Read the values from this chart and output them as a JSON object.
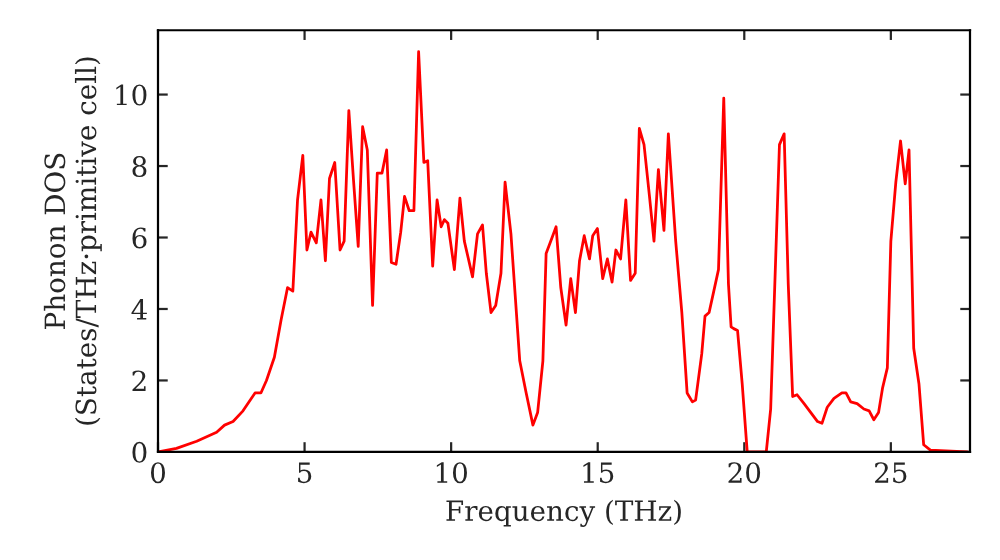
{
  "chart_data": {
    "type": "line",
    "xlabel": "Frequency (THz)",
    "ylabel": "Phonon DOS\n(States/THz·primitive cell)",
    "xlim": [
      0,
      27.7
    ],
    "ylim": [
      0,
      11.8
    ],
    "xticks": [
      0,
      5,
      10,
      15,
      20,
      25
    ],
    "yticks": [
      0,
      2,
      4,
      6,
      8,
      10
    ],
    "grid": false,
    "legend": false,
    "series": [
      {
        "color": "#ff0000",
        "x": [
          0,
          0.63,
          1.32,
          2.0,
          2.27,
          2.56,
          2.9,
          3.31,
          3.51,
          3.7,
          3.97,
          4.2,
          4.42,
          4.6,
          4.76,
          4.94,
          5.08,
          5.22,
          5.4,
          5.56,
          5.71,
          5.85,
          6.03,
          6.21,
          6.35,
          6.51,
          6.67,
          6.83,
          6.98,
          7.14,
          7.32,
          7.48,
          7.64,
          7.8,
          7.96,
          8.12,
          8.28,
          8.41,
          8.57,
          8.73,
          8.89,
          9.07,
          9.2,
          9.37,
          9.52,
          9.66,
          9.77,
          9.89,
          10.11,
          10.3,
          10.45,
          10.73,
          10.9,
          11.07,
          11.2,
          11.36,
          11.52,
          11.7,
          11.84,
          12.04,
          12.34,
          12.56,
          12.79,
          12.95,
          13.13,
          13.24,
          13.4,
          13.58,
          13.74,
          13.92,
          14.08,
          14.24,
          14.38,
          14.54,
          14.72,
          14.83,
          14.99,
          15.17,
          15.33,
          15.49,
          15.62,
          15.78,
          15.96,
          16.12,
          16.28,
          16.42,
          16.58,
          16.76,
          16.92,
          17.07,
          17.26,
          17.41,
          17.66,
          17.87,
          18.05,
          18.23,
          18.34,
          18.55,
          18.66,
          18.8,
          18.96,
          19.12,
          19.3,
          19.46,
          19.55,
          19.64,
          19.77,
          19.93,
          20.1,
          20.75,
          20.9,
          21.2,
          21.36,
          21.5,
          21.65,
          21.8,
          22.04,
          22.27,
          22.5,
          22.65,
          22.83,
          23.06,
          23.33,
          23.47,
          23.63,
          23.85,
          24.08,
          24.26,
          24.42,
          24.58,
          24.72,
          24.88,
          25.0,
          25.17,
          25.33,
          25.49,
          25.62,
          25.78,
          25.96,
          26.12,
          26.35,
          27.6
        ],
        "values": [
          0,
          0.1,
          0.3,
          0.55,
          0.75,
          0.85,
          1.15,
          1.65,
          1.65,
          2.0,
          2.65,
          3.7,
          4.6,
          4.5,
          7.05,
          8.3,
          5.65,
          6.15,
          5.85,
          7.05,
          5.35,
          7.65,
          8.1,
          5.65,
          5.9,
          9.55,
          7.6,
          5.75,
          9.1,
          8.45,
          4.1,
          7.8,
          7.8,
          8.45,
          5.3,
          5.25,
          6.15,
          7.15,
          6.75,
          6.75,
          11.2,
          8.1,
          8.15,
          5.2,
          7.05,
          6.3,
          6.5,
          6.4,
          5.1,
          7.1,
          5.9,
          4.9,
          6.1,
          6.35,
          5.0,
          3.9,
          4.1,
          5.0,
          7.55,
          6.1,
          2.55,
          1.65,
          0.75,
          1.1,
          2.55,
          5.55,
          5.9,
          6.3,
          4.6,
          3.55,
          4.85,
          3.9,
          5.35,
          6.05,
          5.4,
          6.05,
          6.25,
          4.85,
          5.4,
          4.75,
          5.65,
          5.4,
          7.05,
          4.8,
          5.0,
          9.05,
          8.6,
          7.2,
          5.9,
          7.9,
          6.2,
          8.9,
          5.9,
          3.9,
          1.65,
          1.4,
          1.45,
          2.75,
          3.8,
          3.9,
          4.5,
          5.1,
          9.9,
          4.7,
          3.5,
          3.45,
          3.4,
          1.9,
          0,
          0,
          1.2,
          8.6,
          8.9,
          4.7,
          1.55,
          1.6,
          1.35,
          1.1,
          0.85,
          0.8,
          1.25,
          1.5,
          1.65,
          1.65,
          1.4,
          1.35,
          1.2,
          1.15,
          0.9,
          1.1,
          1.8,
          2.35,
          5.9,
          7.55,
          8.7,
          7.5,
          8.45,
          2.9,
          1.9,
          0.2,
          0.05,
          0
        ]
      }
    ]
  }
}
